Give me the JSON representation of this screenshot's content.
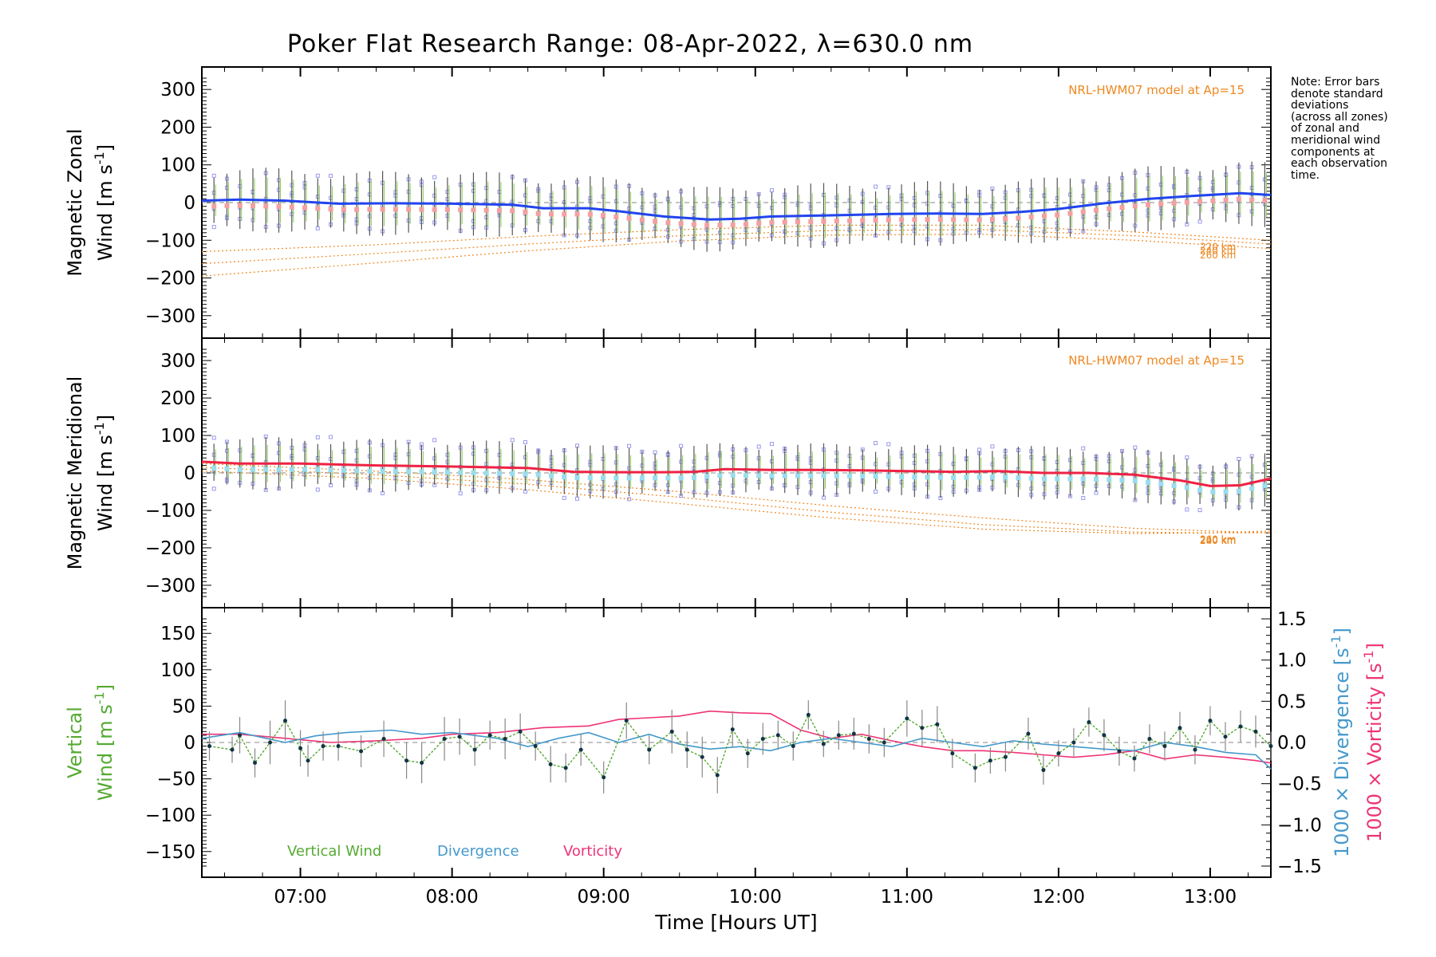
{
  "title": "Poker Flat Research Range: 08-Apr-2022, λ=630.0 nm",
  "xlabel": "Time [Hours UT]",
  "note_lines": [
    "Note: Error bars",
    "denote standard",
    "deviations",
    "(across all zones)",
    "of zonal and",
    "meridional wind",
    "components at",
    "each observation",
    "time."
  ],
  "colors": {
    "zonal": "#2244ee",
    "meridional": "#ee2244",
    "model": "#ee8822",
    "vertical": "#55aa33",
    "divergence": "#4499cc",
    "vorticity": "#ee3377",
    "scatter": "#9999ee",
    "errorbar": "#555555"
  },
  "chart_data": [
    {
      "id": "zonal",
      "type": "line",
      "ylabel_line1": "Magnetic Zonal",
      "ylabel_line2": "Wind [m s",
      "ylabel_sup": "-1",
      "ylabel_end": "]",
      "xlim": [
        6.35,
        13.4
      ],
      "ylim": [
        -330,
        330
      ],
      "xticks": [
        7,
        8,
        9,
        10,
        11,
        12,
        13
      ],
      "yticks": [
        -300,
        -200,
        -100,
        0,
        100,
        200,
        300
      ],
      "ytick_labels": [
        "−300",
        "−200",
        "−100",
        "0",
        "100",
        "200",
        "300"
      ],
      "model_label": "NRL-HWM07 model at Ap=15",
      "model_curves": [
        {
          "label": "220 km",
          "x": [
            6.35,
            7.5,
            8.5,
            9.5,
            10.5,
            11.5,
            12.5,
            13.4
          ],
          "y": [
            -130,
            -112,
            -90,
            -72,
            -60,
            -60,
            -78,
            -100
          ]
        },
        {
          "label": "240 km",
          "x": [
            6.35,
            7.5,
            8.5,
            9.5,
            10.5,
            11.5,
            12.5,
            13.4
          ],
          "y": [
            -162,
            -135,
            -110,
            -88,
            -74,
            -72,
            -88,
            -110
          ]
        },
        {
          "label": "260 km",
          "x": [
            6.35,
            7.5,
            8.5,
            9.5,
            10.5,
            11.5,
            12.5,
            13.4
          ],
          "y": [
            -195,
            -160,
            -128,
            -102,
            -86,
            -84,
            -100,
            -122
          ]
        }
      ],
      "series": [
        {
          "name": "Zonal wind",
          "x": [
            6.35,
            6.6,
            6.9,
            7.25,
            7.6,
            8.0,
            8.4,
            8.6,
            8.9,
            9.1,
            9.4,
            9.7,
            9.9,
            10.1,
            10.35,
            10.6,
            10.9,
            11.2,
            11.5,
            11.75,
            12.0,
            12.3,
            12.6,
            12.9,
            13.2,
            13.4
          ],
          "y": [
            5,
            8,
            5,
            -3,
            -2,
            -3,
            -6,
            -15,
            -15,
            -23,
            -37,
            -45,
            -43,
            -37,
            -35,
            -33,
            -30,
            -29,
            -30,
            -25,
            -17,
            -2,
            10,
            18,
            25,
            20
          ]
        }
      ],
      "errorbar_hw": 75
    },
    {
      "id": "meridional",
      "type": "line",
      "ylabel_line1": "Magnetic Meridional",
      "ylabel_line2": "Wind [m s",
      "ylabel_sup": "-1",
      "ylabel_end": "]",
      "xlim": [
        6.35,
        13.4
      ],
      "ylim": [
        -330,
        330
      ],
      "xticks": [
        7,
        8,
        9,
        10,
        11,
        12,
        13
      ],
      "yticks": [
        -300,
        -200,
        -100,
        0,
        100,
        200,
        300
      ],
      "ytick_labels": [
        "−300",
        "−200",
        "−100",
        "0",
        "100",
        "200",
        "300"
      ],
      "model_label": "NRL-HWM07 model at Ap=15",
      "model_curves": [
        {
          "label": "220 km",
          "x": [
            6.35,
            7.5,
            8.5,
            9.5,
            10.5,
            11.5,
            12.5,
            13.0,
            13.4
          ],
          "y": [
            25,
            5,
            -18,
            -50,
            -88,
            -120,
            -148,
            -155,
            -160
          ]
        },
        {
          "label": "240 km",
          "x": [
            6.35,
            7.5,
            8.5,
            9.5,
            10.5,
            11.5,
            12.5,
            13.0,
            13.4
          ],
          "y": [
            15,
            -5,
            -30,
            -65,
            -105,
            -138,
            -158,
            -160,
            -160
          ]
        },
        {
          "label": "260 km",
          "x": [
            6.35,
            7.5,
            8.5,
            9.5,
            10.5,
            11.5,
            12.5,
            13.0,
            13.4
          ],
          "y": [
            5,
            -15,
            -45,
            -82,
            -120,
            -150,
            -162,
            -160,
            -155
          ]
        }
      ],
      "series": [
        {
          "name": "Meridional wind",
          "x": [
            6.35,
            6.6,
            7.0,
            7.5,
            8.0,
            8.5,
            8.8,
            9.1,
            9.4,
            9.6,
            9.8,
            10.1,
            10.4,
            10.7,
            11.0,
            11.3,
            11.6,
            11.9,
            12.2,
            12.5,
            12.8,
            13.0,
            13.2,
            13.4
          ],
          "y": [
            30,
            25,
            25,
            20,
            17,
            13,
            3,
            2,
            2,
            3,
            10,
            8,
            8,
            7,
            5,
            3,
            5,
            0,
            0,
            -5,
            -20,
            -35,
            -33,
            -15
          ]
        }
      ],
      "errorbar_hw": 62
    },
    {
      "id": "vertical",
      "type": "line",
      "ylabel_line1": "Vertical",
      "ylabel_line2": "Wind [m s",
      "ylabel_sup": "-1",
      "ylabel_end": "]",
      "right_label_div": "1000 × Divergence [s",
      "right_label_vor": "1000 × Vorticity [s",
      "right_sup": "-1",
      "right_end": "]",
      "xlim": [
        6.35,
        13.4
      ],
      "ylim": [
        -170,
        170
      ],
      "y2lim": [
        -1.5,
        1.5
      ],
      "xticks": [
        7,
        8,
        9,
        10,
        11,
        12,
        13
      ],
      "xtick_labels": [
        "07:00",
        "08:00",
        "09:00",
        "10:00",
        "11:00",
        "12:00",
        "13:00"
      ],
      "yticks": [
        -150,
        -100,
        -50,
        0,
        50,
        100,
        150
      ],
      "ytick_labels": [
        "−150",
        "−100",
        "−50",
        "0",
        "50",
        "100",
        "150"
      ],
      "y2ticks": [
        -1.5,
        -1.0,
        -0.5,
        0.0,
        0.5,
        1.0,
        1.5
      ],
      "y2tick_labels": [
        "−1.5",
        "−1.0",
        "−0.5",
        "0.0",
        "0.5",
        "1.0",
        "1.5"
      ],
      "legend": [
        "Vertical Wind",
        "Divergence",
        "Vorticity"
      ],
      "series": [
        {
          "name": "Vertical Wind",
          "x": [
            6.4,
            6.55,
            6.6,
            6.7,
            6.8,
            6.9,
            7.0,
            7.05,
            7.15,
            7.25,
            7.4,
            7.55,
            7.7,
            7.8,
            7.95,
            8.05,
            8.15,
            8.25,
            8.35,
            8.45,
            8.55,
            8.65,
            8.75,
            8.85,
            9.0,
            9.15,
            9.3,
            9.45,
            9.55,
            9.65,
            9.75,
            9.85,
            9.95,
            10.05,
            10.15,
            10.25,
            10.35,
            10.45,
            10.55,
            10.65,
            10.75,
            10.85,
            11.0,
            11.1,
            11.2,
            11.3,
            11.45,
            11.55,
            11.65,
            11.8,
            11.9,
            12.0,
            12.1,
            12.2,
            12.3,
            12.4,
            12.5,
            12.6,
            12.7,
            12.8,
            12.9,
            13.0,
            13.1,
            13.2,
            13.3,
            13.4
          ],
          "y": [
            -5,
            -10,
            10,
            -28,
            0,
            30,
            -8,
            -25,
            -5,
            -5,
            -12,
            5,
            -25,
            -28,
            5,
            8,
            -10,
            10,
            5,
            15,
            -5,
            -30,
            -35,
            -10,
            -48,
            30,
            -10,
            15,
            -10,
            -20,
            -45,
            18,
            -15,
            5,
            10,
            -5,
            38,
            -2,
            10,
            12,
            5,
            0,
            33,
            20,
            25,
            -15,
            -35,
            -25,
            -20,
            12,
            -38,
            -15,
            0,
            28,
            10,
            -12,
            -22,
            5,
            -5,
            20,
            -10,
            30,
            8,
            22,
            15,
            -5
          ],
          "err": [
            20,
            18,
            25,
            20,
            30,
            28,
            25,
            22,
            20,
            20,
            22,
            25,
            25,
            28,
            30,
            25,
            22,
            20,
            28,
            25,
            20,
            25,
            20,
            22,
            22,
            25,
            20,
            30,
            25,
            28,
            25,
            25,
            20,
            22,
            20,
            20,
            20,
            18,
            20,
            22,
            20,
            20,
            25,
            25,
            25,
            20,
            20,
            18,
            20,
            22,
            20,
            18,
            20,
            20,
            22,
            20,
            18,
            20,
            20,
            22,
            20,
            20,
            20,
            22,
            22,
            20
          ]
        },
        {
          "name": "Divergence",
          "axis": "y2",
          "x": [
            6.35,
            6.6,
            6.9,
            7.1,
            7.3,
            7.6,
            7.8,
            8.0,
            8.3,
            8.5,
            8.7,
            8.9,
            9.1,
            9.3,
            9.5,
            9.7,
            9.9,
            10.1,
            10.3,
            10.5,
            10.7,
            10.9,
            11.1,
            11.3,
            11.5,
            11.7,
            11.9,
            12.1,
            12.3,
            12.5,
            12.7,
            12.9,
            13.1,
            13.3,
            13.4
          ],
          "y": [
            0.05,
            0.12,
            0.0,
            0.08,
            0.12,
            0.15,
            0.1,
            0.12,
            0.05,
            -0.05,
            0.05,
            0.12,
            0.0,
            0.1,
            -0.02,
            -0.08,
            -0.05,
            -0.1,
            0.0,
            0.05,
            0.0,
            -0.05,
            0.05,
            0.0,
            -0.05,
            0.02,
            -0.02,
            -0.05,
            -0.08,
            -0.1,
            0.0,
            -0.05,
            -0.12,
            -0.15,
            -0.32
          ]
        },
        {
          "name": "Vorticity",
          "axis": "y2",
          "x": [
            6.35,
            6.6,
            6.9,
            7.2,
            7.5,
            7.8,
            8.0,
            8.3,
            8.6,
            8.9,
            9.1,
            9.3,
            9.5,
            9.7,
            9.9,
            10.1,
            10.3,
            10.5,
            10.7,
            10.9,
            11.1,
            11.3,
            11.5,
            11.7,
            11.9,
            12.1,
            12.3,
            12.5,
            12.7,
            12.9,
            13.1,
            13.3,
            13.4
          ],
          "y": [
            0.1,
            0.1,
            0.05,
            0.0,
            0.02,
            0.05,
            0.1,
            0.12,
            0.18,
            0.2,
            0.28,
            0.3,
            0.32,
            0.38,
            0.36,
            0.35,
            0.15,
            0.05,
            0.1,
            0.02,
            -0.05,
            -0.1,
            -0.1,
            -0.12,
            -0.15,
            -0.18,
            -0.15,
            -0.1,
            -0.2,
            -0.15,
            -0.18,
            -0.22,
            -0.25
          ]
        }
      ]
    }
  ]
}
